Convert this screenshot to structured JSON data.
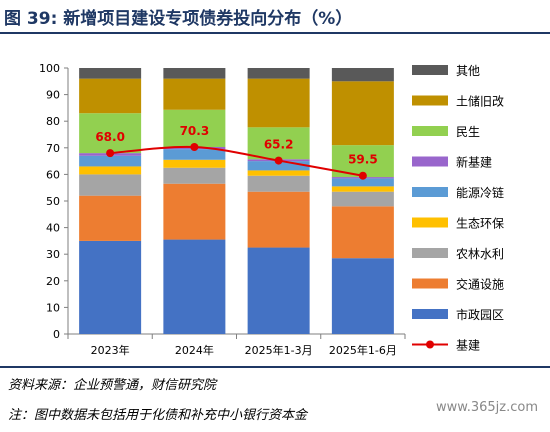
{
  "title": "图 39: 新增项目建设专项债券投向分布（%）",
  "source": "资料来源：企业预警通，财信研究院",
  "note": "注：图中数据未包括用于化债和补充中小银行资本金",
  "watermark": "www.365jz.com",
  "chart_data": {
    "type": "bar",
    "stacked": true,
    "categories": [
      "2023年",
      "2024年",
      "2025年1-3月",
      "2025年1-6月"
    ],
    "ylim": [
      0,
      100
    ],
    "yticks": [
      0,
      10,
      20,
      30,
      40,
      50,
      60,
      70,
      80,
      90,
      100
    ],
    "grid": false,
    "legend_position": "right",
    "series": [
      {
        "name": "市政园区",
        "color": "#4472c4",
        "values": [
          35,
          35.5,
          32.5,
          28.5
        ]
      },
      {
        "name": "交通设施",
        "color": "#ed7d31",
        "values": [
          17,
          21,
          21,
          19.5
        ]
      },
      {
        "name": "农林水利",
        "color": "#a5a5a5",
        "values": [
          8,
          6,
          6,
          5.5
        ]
      },
      {
        "name": "生态环保",
        "color": "#ffc000",
        "values": [
          3,
          3,
          2,
          2
        ]
      },
      {
        "name": "能源冷链",
        "color": "#5b9bd5",
        "values": [
          4,
          4,
          3.5,
          3
        ]
      },
      {
        "name": "新基建",
        "color": "#9966cc",
        "values": [
          1,
          0.8,
          0.7,
          0.5
        ]
      },
      {
        "name": "民生",
        "color": "#92d050",
        "values": [
          15,
          14,
          12,
          12
        ]
      },
      {
        "name": "土储旧改",
        "color": "#bf9000",
        "values": [
          13,
          11.7,
          18.3,
          24
        ]
      },
      {
        "name": "其他",
        "color": "#595959",
        "values": [
          4,
          4,
          4,
          5
        ]
      }
    ],
    "line": {
      "name": "基建",
      "color": "#e00000",
      "values": [
        68.0,
        70.3,
        65.2,
        59.5
      ],
      "labels": [
        "68.0",
        "70.3",
        "65.2",
        "59.5"
      ]
    }
  }
}
